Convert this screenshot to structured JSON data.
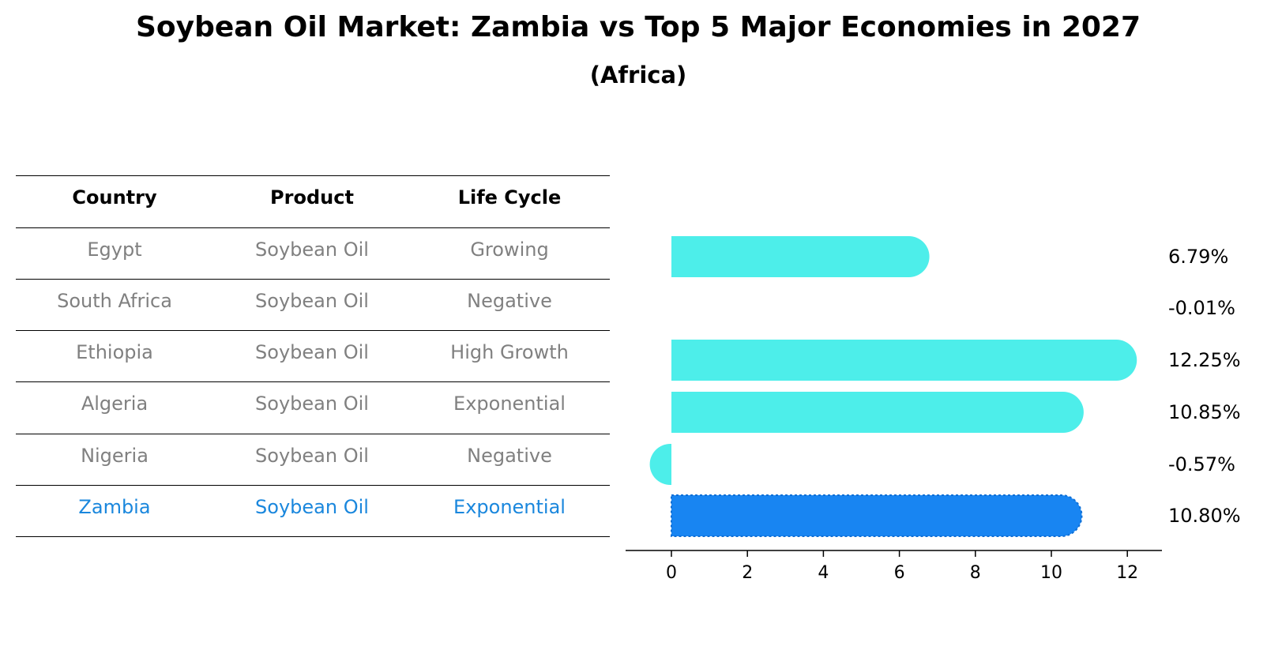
{
  "chart_data": {
    "type": "bar",
    "orientation": "horizontal",
    "title": "Soybean Oil Market: Zambia vs Top 5 Major Economies in 2027",
    "subtitle": "(Africa)",
    "table": {
      "columns": [
        "Country",
        "Product",
        "Life Cycle"
      ],
      "rows": [
        {
          "country": "Egypt",
          "product": "Soybean Oil",
          "life_cycle": "Growing"
        },
        {
          "country": "South Africa",
          "product": "Soybean Oil",
          "life_cycle": "Negative"
        },
        {
          "country": "Ethiopia",
          "product": "Soybean Oil",
          "life_cycle": "High Growth"
        },
        {
          "country": "Algeria",
          "product": "Soybean Oil",
          "life_cycle": "Exponential"
        },
        {
          "country": "Nigeria",
          "product": "Soybean Oil",
          "life_cycle": "Negative"
        },
        {
          "country": "Zambia",
          "product": "Soybean Oil",
          "life_cycle": "Exponential"
        }
      ]
    },
    "categories": [
      "Egypt",
      "South Africa",
      "Ethiopia",
      "Algeria",
      "Nigeria",
      "Zambia"
    ],
    "values": [
      6.79,
      -0.01,
      12.25,
      10.85,
      -0.57,
      10.8
    ],
    "value_labels": [
      "6.79%",
      "-0.01%",
      "12.25%",
      "10.85%",
      "-0.57%",
      "10.80%"
    ],
    "highlight": "Zambia",
    "xlim": [
      -1.25,
      12.9
    ],
    "xticks": [
      "0",
      "2",
      "4",
      "6",
      "8",
      "10",
      "12"
    ],
    "colors": {
      "bar": "#4deeea",
      "highlight": "#1885f2",
      "table_text": "#808080",
      "highlight_text": "#1a87dd"
    },
    "grid": false
  }
}
